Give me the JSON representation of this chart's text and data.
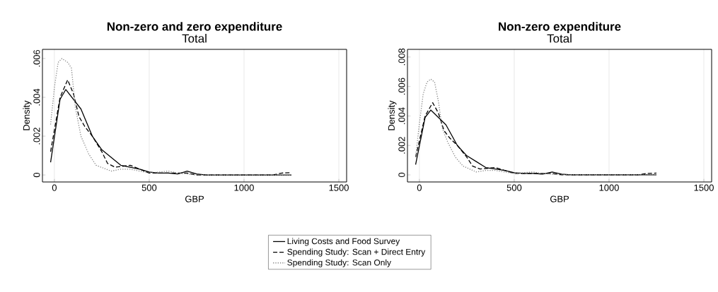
{
  "chart_data": [
    {
      "type": "line",
      "title": "Non-zero and zero expenditure",
      "subtitle": "Total",
      "xlabel": "GBP",
      "ylabel": "Density",
      "xlim": [
        -63,
        1541
      ],
      "xticks": [
        0,
        500,
        1000,
        1500
      ],
      "ylim": [
        -0.00036,
        0.00647
      ],
      "yticks": [
        0,
        {
          "value": 0.002,
          "label": ".002"
        },
        {
          "value": 0.004,
          "label": ".004"
        },
        {
          "value": 0.006,
          "label": ".006"
        }
      ],
      "grid": "x",
      "legend": "bottom",
      "series": [
        {
          "name": "Living Costs and Food Survey",
          "color": "#000000",
          "line_style": "solid",
          "x": [
            -20,
            30,
            60,
            100,
            140,
            200,
            250,
            300,
            350,
            400,
            450,
            500,
            550,
            600,
            650,
            700,
            750,
            800,
            1000,
            1200,
            1250
          ],
          "values": [
            0.00065,
            0.0039,
            0.0044,
            0.0039,
            0.0034,
            0.002,
            0.0013,
            0.0009,
            0.0005,
            0.0004,
            0.0003,
            0.00015,
            0.0001,
            0.0001,
            5e-05,
            0.0002,
            5e-05,
            0,
            0,
            0,
            0
          ]
        },
        {
          "name": "Spending Study: Scan + Direct Entry",
          "color": "#000000",
          "line_style": "dashed",
          "x": [
            -20,
            30,
            70,
            100,
            130,
            160,
            200,
            250,
            280,
            320,
            400,
            450,
            500,
            600,
            700,
            750,
            1150,
            1200,
            1250
          ],
          "values": [
            0.0012,
            0.004,
            0.0049,
            0.0042,
            0.003,
            0.0025,
            0.002,
            0.0012,
            0.0006,
            0.0004,
            0.0005,
            0.0003,
            0.0001,
            0.0001,
            0.0001,
            0,
            0,
            0.0001,
            0.00012
          ]
        },
        {
          "name": "Spending Study: Scan Only",
          "color": "#888888",
          "line_style": "dotted",
          "x": [
            -20,
            0,
            20,
            40,
            70,
            90,
            110,
            140,
            180,
            220,
            300,
            350,
            400,
            450,
            500,
            600,
            650,
            700,
            750,
            1250
          ],
          "values": [
            0.0026,
            0.0045,
            0.0058,
            0.006,
            0.0058,
            0.0055,
            0.0035,
            0.002,
            0.0011,
            0.0005,
            0.0002,
            0.0003,
            0.0003,
            0.0002,
            0.0001,
            0.0002,
            0.0001,
            5e-05,
            0,
            0
          ]
        }
      ]
    },
    {
      "type": "line",
      "title": "Non-zero expenditure",
      "subtitle": "Total",
      "xlabel": "GBP",
      "ylabel": "Density",
      "xlim": [
        -63,
        1541
      ],
      "xticks": [
        0,
        500,
        1000,
        1500
      ],
      "ylim": [
        -0.00048,
        0.00852
      ],
      "yticks": [
        0,
        {
          "value": 0.002,
          "label": ".002"
        },
        {
          "value": 0.004,
          "label": ".004"
        },
        {
          "value": 0.006,
          "label": ".006"
        },
        {
          "value": 0.008,
          "label": ".008"
        }
      ],
      "grid": "x",
      "series": [
        {
          "color": "#000000",
          "line_style": "solid",
          "x": [
            -20,
            30,
            60,
            100,
            140,
            200,
            250,
            300,
            350,
            400,
            450,
            500,
            550,
            600,
            650,
            700,
            750,
            800,
            1000,
            1200,
            1250
          ],
          "values": [
            0.0007,
            0.0039,
            0.0044,
            0.0039,
            0.0034,
            0.002,
            0.0013,
            0.0009,
            0.0005,
            0.0004,
            0.0003,
            0.00015,
            0.0001,
            0.0001,
            5e-05,
            0.0002,
            5e-05,
            0,
            0,
            0,
            0
          ]
        },
        {
          "color": "#000000",
          "line_style": "dashed",
          "x": [
            -20,
            30,
            70,
            100,
            130,
            160,
            200,
            250,
            280,
            320,
            400,
            450,
            500,
            600,
            700,
            750,
            1150,
            1200,
            1250
          ],
          "values": [
            0.0012,
            0.004,
            0.0049,
            0.0042,
            0.003,
            0.0025,
            0.002,
            0.0012,
            0.0006,
            0.0004,
            0.0005,
            0.0003,
            0.0001,
            0.0001,
            0.0001,
            0,
            0,
            0.0001,
            0.00012
          ]
        },
        {
          "color": "#888888",
          "line_style": "dotted",
          "x": [
            -20,
            0,
            20,
            40,
            60,
            80,
            100,
            120,
            150,
            190,
            230,
            300,
            350,
            400,
            450,
            500,
            600,
            650,
            700,
            750,
            1250
          ],
          "values": [
            0.0012,
            0.0035,
            0.0055,
            0.0063,
            0.0065,
            0.0063,
            0.005,
            0.0032,
            0.0022,
            0.0012,
            0.0006,
            0.0002,
            0.0003,
            0.0003,
            0.0002,
            0.0001,
            0.0002,
            0.0001,
            5e-05,
            0,
            0
          ]
        }
      ]
    }
  ]
}
